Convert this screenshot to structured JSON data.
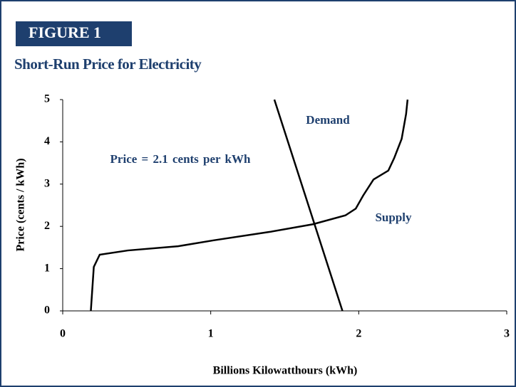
{
  "figure_label": "FIGURE 1",
  "chart_data": {
    "type": "line",
    "title": "Short-Run Price for Electricity",
    "x_label": "Billions Kilowatthours (kWh)",
    "y_label": "Price (cents / kWh)",
    "xlim": [
      0,
      3
    ],
    "xticks": [
      0,
      1,
      2,
      3
    ],
    "ylim": [
      0,
      5
    ],
    "yticks": [
      0,
      1,
      2,
      3,
      4,
      5
    ],
    "annotations": [
      "Demand",
      "Supply",
      "Price = 2.1 cents per kWh"
    ],
    "series": [
      {
        "name": "Supply",
        "color": "#000000",
        "x": [
          0.19,
          0.21,
          0.25,
          0.44,
          0.78,
          1.02,
          1.4,
          1.69,
          1.91,
          1.98,
          2.03,
          2.1,
          2.2,
          2.24,
          2.29,
          2.32,
          2.33
        ],
        "values": [
          0,
          1.04,
          1.33,
          1.43,
          1.53,
          1.67,
          1.87,
          2.05,
          2.26,
          2.42,
          2.73,
          3.11,
          3.32,
          3.62,
          4.07,
          4.66,
          5.0
        ]
      },
      {
        "name": "Demand",
        "color": "#000000",
        "x": [
          1.43,
          1.89
        ],
        "values": [
          5.0,
          0
        ]
      }
    ]
  }
}
